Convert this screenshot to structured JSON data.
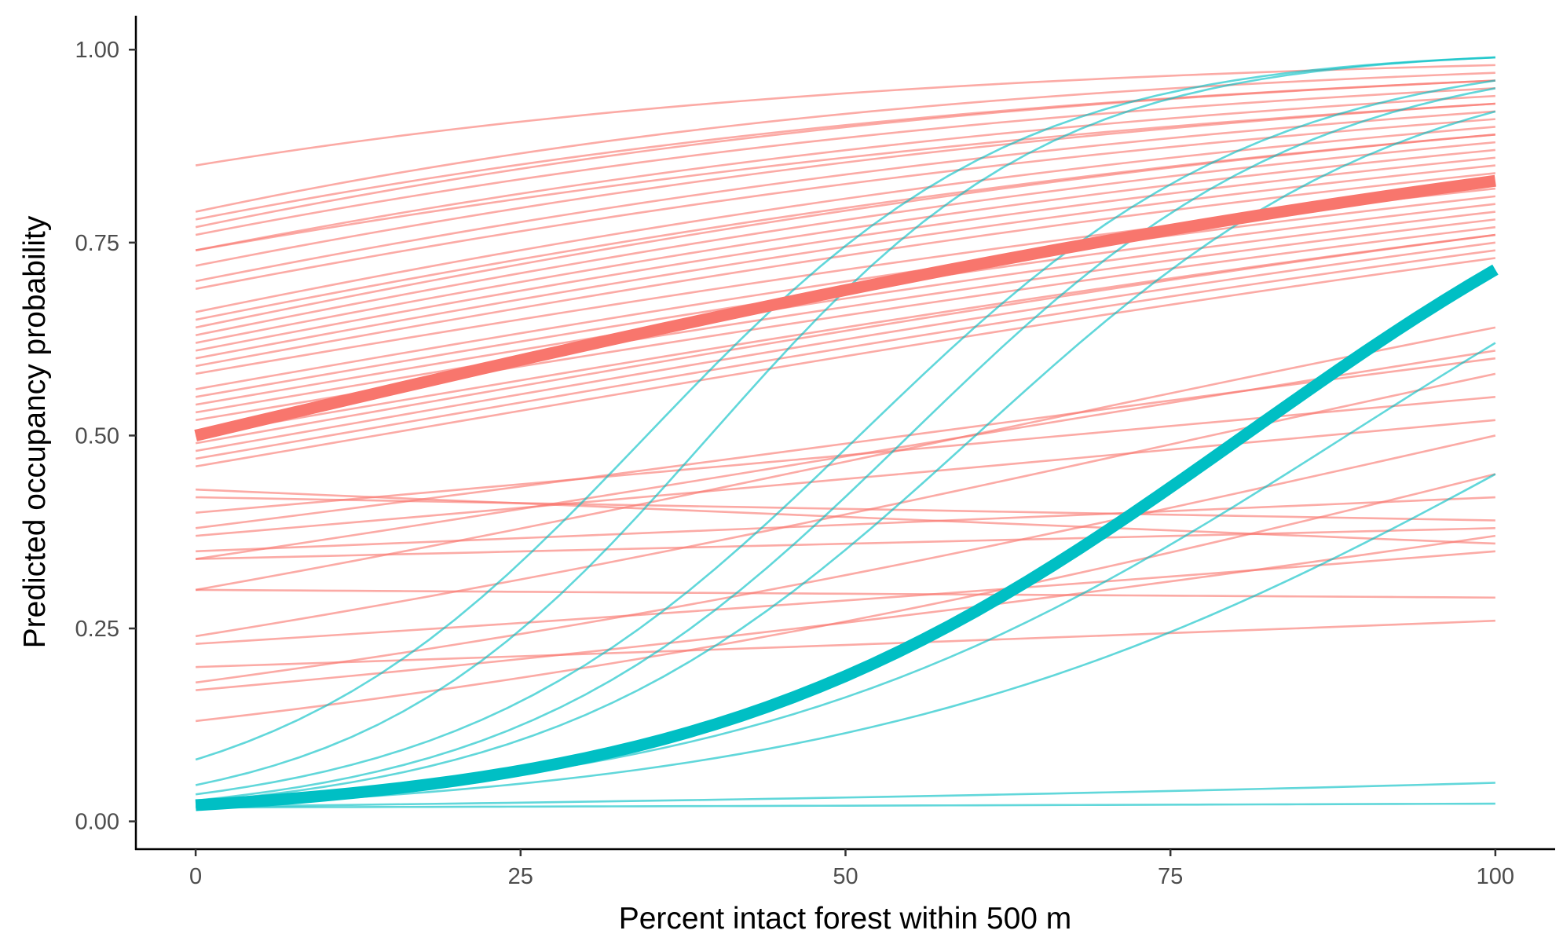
{
  "chart_data": {
    "type": "line",
    "title": "",
    "xlabel": "Percent intact forest within 500 m",
    "ylabel": "Predicted occupancy probability",
    "xlim": [
      -4.6,
      104.6
    ],
    "ylim": [
      -0.036,
      1.044
    ],
    "xticks": [
      0,
      25,
      50,
      75,
      100
    ],
    "xtick_labels": [
      "0",
      "25",
      "50",
      "75",
      "100"
    ],
    "yticks": [
      0,
      0.25,
      0.5,
      0.75,
      1.0
    ],
    "ytick_labels": [
      "0.00",
      "0.25",
      "0.50",
      "0.75",
      "1.00"
    ],
    "grid": false,
    "legend": "none",
    "colors": {
      "group1": "#F8766D",
      "group2": "#00BFC4"
    },
    "series_groups": [
      {
        "color": "#F8766D",
        "mean": {
          "start": 0.5,
          "end": 0.83
        },
        "individual": [
          [
            0.85,
            0.98
          ],
          [
            0.79,
            0.97
          ],
          [
            0.78,
            0.96
          ],
          [
            0.77,
            0.96
          ],
          [
            0.76,
            0.95
          ],
          [
            0.74,
            0.94
          ],
          [
            0.74,
            0.93
          ],
          [
            0.72,
            0.93
          ],
          [
            0.7,
            0.92
          ],
          [
            0.69,
            0.91
          ],
          [
            0.66,
            0.9
          ],
          [
            0.65,
            0.89
          ],
          [
            0.64,
            0.89
          ],
          [
            0.63,
            0.88
          ],
          [
            0.62,
            0.87
          ],
          [
            0.61,
            0.86
          ],
          [
            0.6,
            0.85
          ],
          [
            0.59,
            0.84
          ],
          [
            0.58,
            0.82
          ],
          [
            0.56,
            0.81
          ],
          [
            0.55,
            0.8
          ],
          [
            0.54,
            0.79
          ],
          [
            0.53,
            0.78
          ],
          [
            0.52,
            0.77
          ],
          [
            0.5,
            0.76
          ],
          [
            0.49,
            0.76
          ],
          [
            0.48,
            0.75
          ],
          [
            0.47,
            0.74
          ],
          [
            0.46,
            0.73
          ],
          [
            0.43,
            0.36
          ],
          [
            0.42,
            0.39
          ],
          [
            0.4,
            0.55
          ],
          [
            0.38,
            0.6
          ],
          [
            0.37,
            0.52
          ],
          [
            0.35,
            0.42
          ],
          [
            0.34,
            0.61
          ],
          [
            0.34,
            0.38
          ],
          [
            0.3,
            0.29
          ],
          [
            0.3,
            0.64
          ],
          [
            0.24,
            0.58
          ],
          [
            0.23,
            0.35
          ],
          [
            0.2,
            0.26
          ],
          [
            0.18,
            0.5
          ],
          [
            0.17,
            0.37
          ],
          [
            0.13,
            0.45
          ]
        ]
      },
      {
        "color": "#00BFC4",
        "mean": {
          "start": 0.021,
          "end": 0.715
        },
        "individual": [
          [
            0.08,
            0.99
          ],
          [
            0.047,
            0.99
          ],
          [
            0.035,
            0.96
          ],
          [
            0.027,
            0.95
          ],
          [
            0.025,
            0.92
          ],
          [
            0.022,
            0.62
          ],
          [
            0.02,
            0.45
          ],
          [
            0.019,
            0.05
          ],
          [
            0.018,
            0.023
          ]
        ]
      }
    ]
  }
}
